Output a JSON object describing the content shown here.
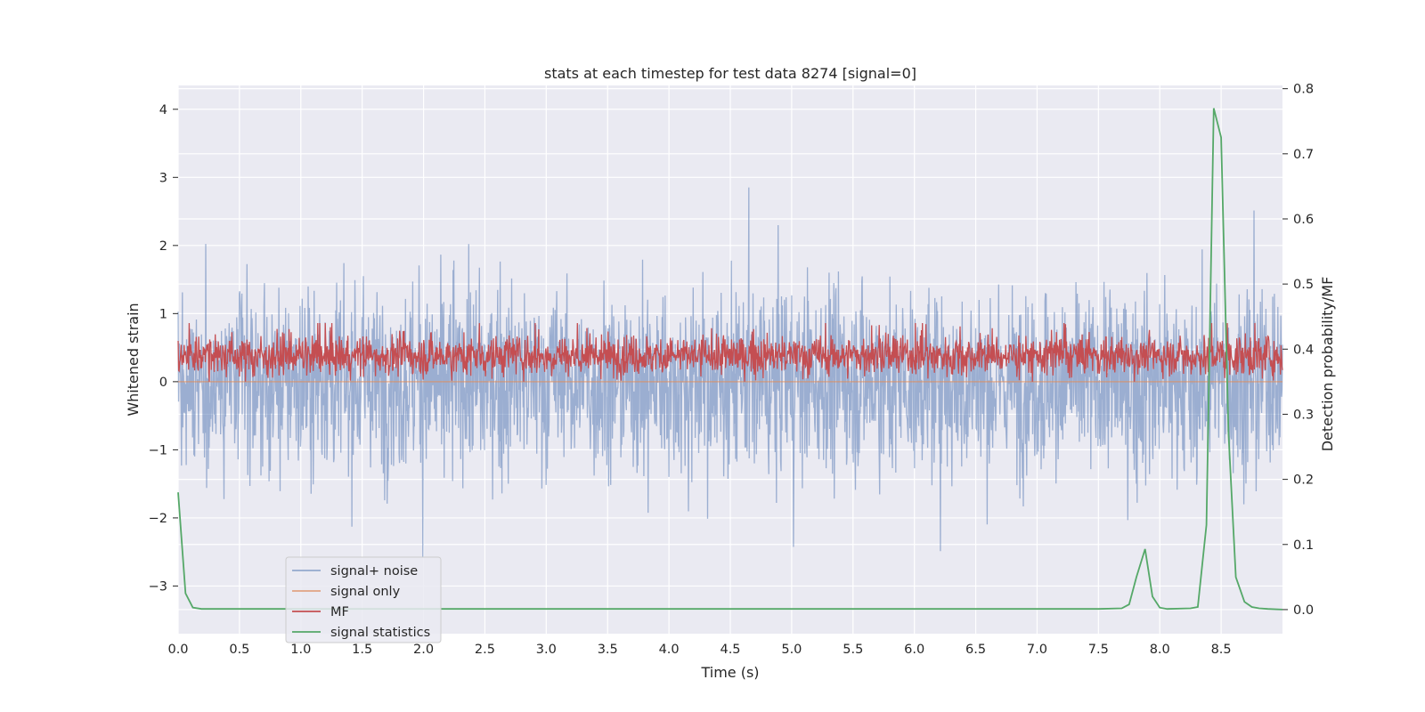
{
  "chart_data": {
    "type": "line",
    "title": "stats at each timestep for test data 8274 [signal=0]",
    "xlabel": "Time (s)",
    "ylabel": "Whitened strain",
    "y2label": "Detection probability/MF",
    "xlim": [
      0.0,
      9.0
    ],
    "ylim": [
      -3.7,
      4.35
    ],
    "y2lim": [
      -0.037,
      0.805
    ],
    "xticks": [
      "0.0",
      "0.5",
      "1.0",
      "1.5",
      "2.0",
      "2.5",
      "3.0",
      "3.5",
      "4.0",
      "4.5",
      "5.0",
      "5.5",
      "6.0",
      "6.5",
      "7.0",
      "7.5",
      "8.0",
      "8.5"
    ],
    "yticks": [
      "4",
      "3",
      "2",
      "1",
      "0",
      "−1",
      "−2",
      "−3"
    ],
    "y2ticks": [
      "0.8",
      "0.7",
      "0.6",
      "0.5",
      "0.4",
      "0.3",
      "0.2",
      "0.1",
      "0.0"
    ],
    "grid": true,
    "legend_position": "lower-left",
    "colors": {
      "plot_bg": "#eaeaf2",
      "grid": "#ffffff",
      "noise": "#4c72b0",
      "signal_only": "#dd8452",
      "mf": "#c44e52",
      "stat": "#55a868"
    },
    "series": [
      {
        "name": "signal+ noise",
        "axis": "left",
        "color": "#4c72b0",
        "opacity": 0.5,
        "envelope": "dense noise approx. between -3.2 and 4.0, mostly within -2 and 2.3"
      },
      {
        "name": "signal only",
        "axis": "left",
        "color": "#dd8452",
        "values_constant": 0.0
      },
      {
        "name": "MF",
        "axis": "right",
        "color": "#c44e52",
        "envelope": "dense band approx. between 0.35 and 0.44 on right axis"
      },
      {
        "name": "signal statistics",
        "axis": "right",
        "color": "#55a868",
        "x": [
          0.0,
          0.06,
          0.12,
          0.19,
          0.25,
          0.5,
          1.0,
          2.0,
          3.0,
          4.0,
          5.0,
          6.0,
          7.0,
          7.5,
          7.69,
          7.75,
          7.81,
          7.88,
          7.94,
          8.0,
          8.06,
          8.25,
          8.31,
          8.38,
          8.44,
          8.5,
          8.56,
          8.62,
          8.69,
          8.75,
          8.81,
          8.88,
          9.0
        ],
        "y": [
          0.18,
          0.025,
          0.003,
          0.001,
          0.001,
          0.001,
          0.001,
          0.001,
          0.001,
          0.001,
          0.001,
          0.001,
          0.001,
          0.001,
          0.002,
          0.008,
          0.05,
          0.093,
          0.02,
          0.003,
          0.001,
          0.002,
          0.004,
          0.13,
          0.77,
          0.725,
          0.27,
          0.05,
          0.012,
          0.004,
          0.002,
          0.001,
          0.0
        ]
      }
    ]
  }
}
